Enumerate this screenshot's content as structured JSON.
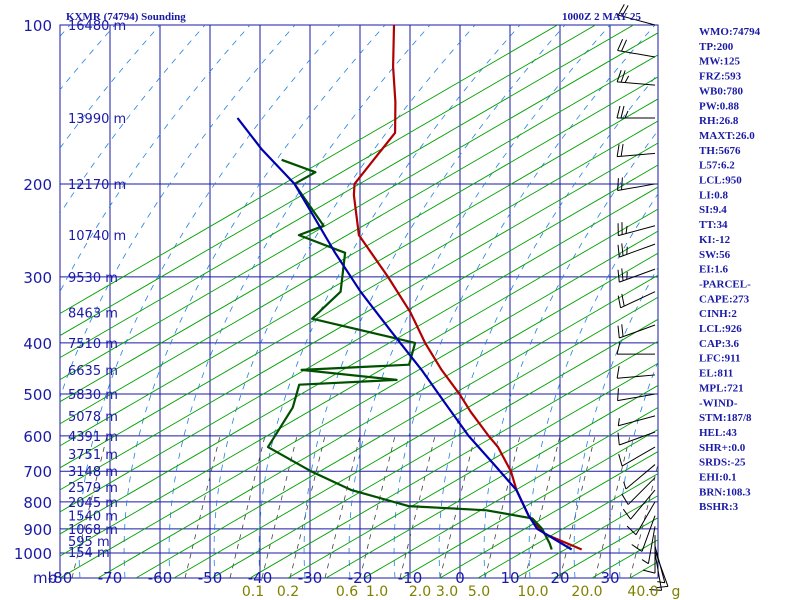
{
  "header": {
    "station": "KXMR (74794) Sounding",
    "time": "1000Z  2 MAY 25"
  },
  "axis_unit": "mb",
  "pressure_labels": [
    "100",
    "200",
    "300",
    "400",
    "500",
    "600",
    "700",
    "800",
    "900",
    "1000"
  ],
  "temp_labels": [
    "-80",
    "-70",
    "-60",
    "-50",
    "-40",
    "-30",
    "-20",
    "-10",
    "0",
    "10",
    "20",
    "30"
  ],
  "height_labels": [
    "16480 m",
    "13990 m",
    "12170 m",
    "10740 m",
    "9530 m",
    "8463 m",
    "7510 m",
    "6635 m",
    "5830 m",
    "5078 m",
    "4391 m",
    "3751 m",
    "3148 m",
    "2579 m",
    "2045 m",
    "1540 m",
    "1068 m",
    "595 m",
    "154 m"
  ],
  "mixing_labels": [
    "0.1",
    "0.2",
    "0.6",
    "1.0",
    "2.0",
    "3.0",
    "5.0",
    "10.0",
    "20.0",
    "40.0",
    "g"
  ],
  "indices": [
    "WMO:74794",
    "TP:200",
    "MW:125",
    "FRZ:593",
    "WB0:780",
    "PW:0.88",
    "RH:26.8",
    "MAXT:26.0",
    "TH:5676",
    "L57:6.2",
    "LCL:950",
    "LI:0.8",
    "SI:9.4",
    "TT:34",
    "KI:-12",
    "SW:56",
    "EI:1.6",
    "-PARCEL-",
    "CAPE:273",
    "CINH:2",
    "LCL:926",
    "CAP:3.6",
    "LFC:911",
    "EL:811",
    "MPL:721",
    "-WIND-",
    "STM:187/8",
    "HEL:43",
    "SHR+:0.0",
    "SRDS:-25",
    "EHI:0.1",
    "BRN:108.3",
    "BSHR:3"
  ],
  "colors": {
    "grid": "#1a1aa6",
    "temperature": "#b00000",
    "dewpoint": "#005000",
    "parcel": "#0000b0",
    "dry_adiabat": "#00a000",
    "moist_adiabat": "#2080e0",
    "mixing_ratio": "#404040",
    "wind": "#000000"
  },
  "chart_data": {
    "type": "line",
    "xlabel": "",
    "ylabel": "mb",
    "xlim": [
      -80,
      40
    ],
    "ylim": [
      1000,
      100
    ],
    "y_scale": "log",
    "grid": true,
    "series": [
      {
        "key": "temperature",
        "points": [
          [
            24,
            985
          ],
          [
            15,
            920
          ],
          [
            10,
            850
          ],
          [
            5,
            760
          ],
          [
            2,
            700
          ],
          [
            -3,
            630
          ],
          [
            -6,
            600
          ],
          [
            -12,
            540
          ],
          [
            -16,
            500
          ],
          [
            -22,
            450
          ],
          [
            -28,
            400
          ],
          [
            -34,
            350
          ],
          [
            -42,
            300
          ],
          [
            -52,
            250
          ],
          [
            -57,
            210
          ],
          [
            -58,
            200
          ],
          [
            -55,
            160
          ],
          [
            -58,
            140
          ],
          [
            -62,
            120
          ],
          [
            -66,
            100
          ]
        ]
      },
      {
        "key": "dewpoint",
        "points": [
          [
            18,
            985
          ],
          [
            17,
            960
          ],
          [
            14,
            900
          ],
          [
            11,
            860
          ],
          [
            1,
            830
          ],
          [
            -15,
            815
          ],
          [
            -28,
            760
          ],
          [
            -38,
            700
          ],
          [
            -49,
            630
          ],
          [
            -48,
            530
          ],
          [
            -49,
            480
          ],
          [
            -30,
            470
          ],
          [
            -50,
            450
          ],
          [
            -29,
            440
          ],
          [
            -30,
            400
          ],
          [
            -53,
            360
          ],
          [
            -50,
            320
          ],
          [
            -53,
            270
          ],
          [
            -64,
            250
          ],
          [
            -60,
            240
          ],
          [
            -70,
            200
          ],
          [
            -67,
            190
          ],
          [
            -75,
            180
          ]
        ]
      },
      {
        "key": "parcel",
        "points": [
          [
            22,
            985
          ],
          [
            13,
            900
          ],
          [
            10,
            850
          ],
          [
            5,
            760
          ],
          [
            -2,
            680
          ],
          [
            -10,
            600
          ],
          [
            -18,
            520
          ],
          [
            -26,
            450
          ],
          [
            -36,
            380
          ],
          [
            -46,
            320
          ],
          [
            -55,
            270
          ],
          [
            -63,
            230
          ],
          [
            -70,
            200
          ],
          [
            -80,
            172
          ],
          [
            -88,
            150
          ]
        ]
      }
    ],
    "wind_barbs": [
      {
        "p": 1000,
        "dir": 170,
        "spd": 10
      },
      {
        "p": 990,
        "dir": 160,
        "spd": 10
      },
      {
        "p": 970,
        "dir": 165,
        "spd": 5
      },
      {
        "p": 925,
        "dir": 180,
        "spd": 10
      },
      {
        "p": 890,
        "dir": 190,
        "spd": 5
      },
      {
        "p": 850,
        "dir": 200,
        "spd": 10
      },
      {
        "p": 800,
        "dir": 210,
        "spd": 10
      },
      {
        "p": 760,
        "dir": 220,
        "spd": 10
      },
      {
        "p": 720,
        "dir": 225,
        "spd": 10
      },
      {
        "p": 680,
        "dir": 230,
        "spd": 5
      },
      {
        "p": 630,
        "dir": 240,
        "spd": 10
      },
      {
        "p": 590,
        "dir": 250,
        "spd": 10
      },
      {
        "p": 550,
        "dir": 255,
        "spd": 5
      },
      {
        "p": 500,
        "dir": 260,
        "spd": 10
      },
      {
        "p": 460,
        "dir": 265,
        "spd": 10
      },
      {
        "p": 420,
        "dir": 270,
        "spd": 10
      },
      {
        "p": 370,
        "dir": 250,
        "spd": 20
      },
      {
        "p": 320,
        "dir": 245,
        "spd": 20
      },
      {
        "p": 290,
        "dir": 250,
        "spd": 25
      },
      {
        "p": 260,
        "dir": 250,
        "spd": 25
      },
      {
        "p": 240,
        "dir": 255,
        "spd": 25
      },
      {
        "p": 200,
        "dir": 260,
        "spd": 20
      },
      {
        "p": 175,
        "dir": 265,
        "spd": 20
      },
      {
        "p": 150,
        "dir": 270,
        "spd": 25
      },
      {
        "p": 130,
        "dir": 275,
        "spd": 25
      },
      {
        "p": 115,
        "dir": 280,
        "spd": 20
      },
      {
        "p": 100,
        "dir": 285,
        "spd": 20
      }
    ]
  }
}
